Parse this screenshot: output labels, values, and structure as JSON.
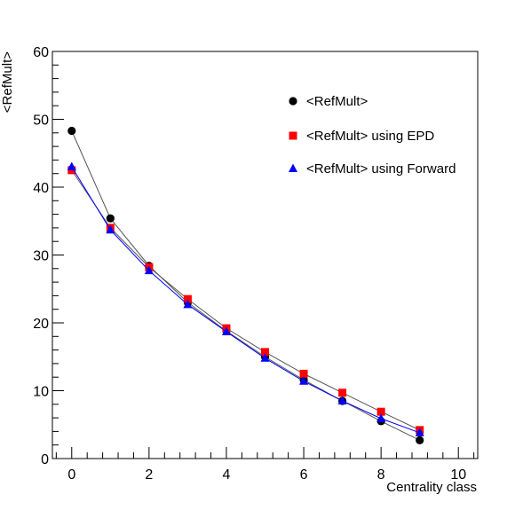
{
  "chart_data": {
    "type": "scatter",
    "title": "",
    "xlabel": "Centrality class",
    "ylabel": "<RefMult>",
    "xlim": [
      -0.5,
      10.5
    ],
    "ylim": [
      0,
      60
    ],
    "x_ticks": [
      0,
      2,
      4,
      6,
      8,
      10
    ],
    "y_ticks": [
      0,
      10,
      20,
      30,
      40,
      50,
      60
    ],
    "x_tick_labels": [
      "0",
      "2",
      "4",
      "6",
      "8",
      "10"
    ],
    "y_tick_labels": [
      "0",
      "10",
      "20",
      "30",
      "40",
      "50",
      "60"
    ],
    "grid": false,
    "legend_position": "top-right",
    "x": [
      0,
      1,
      2,
      3,
      4,
      5,
      6,
      7,
      8,
      9
    ],
    "series": [
      {
        "name": "<RefMult>",
        "marker": "circle",
        "color": "#000000",
        "line_color": "#555555",
        "values": [
          48.3,
          35.4,
          28.4,
          23.0,
          18.8,
          15.0,
          11.6,
          8.5,
          5.5,
          2.7
        ]
      },
      {
        "name": "<RefMult> using EPD",
        "marker": "square",
        "color": "#ff0000",
        "line_color": "#555555",
        "values": [
          42.5,
          34.0,
          28.2,
          23.5,
          19.2,
          15.7,
          12.5,
          9.7,
          6.9,
          4.2
        ]
      },
      {
        "name": "<RefMult> using Forward",
        "marker": "triangle",
        "color": "#0000ff",
        "line_color": "#0000ff",
        "values": [
          43.0,
          33.7,
          27.7,
          22.7,
          18.7,
          14.8,
          11.4,
          8.5,
          5.9,
          3.8
        ]
      }
    ]
  }
}
